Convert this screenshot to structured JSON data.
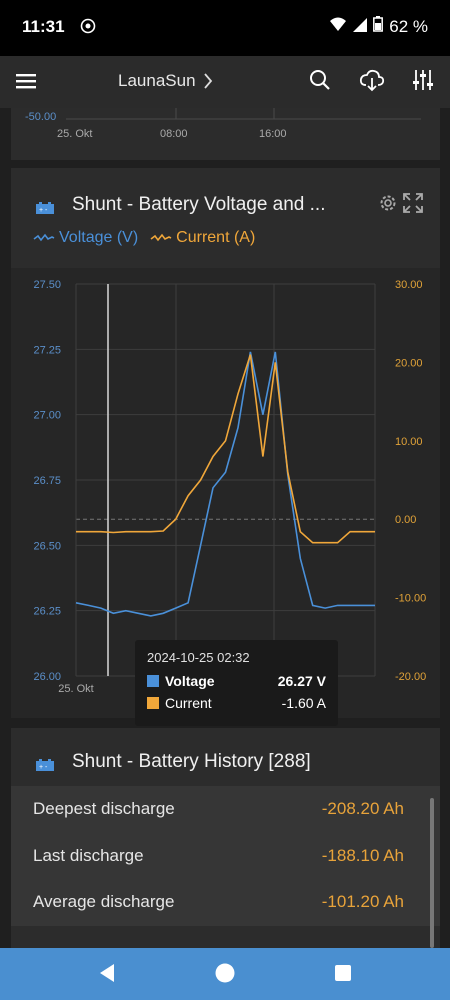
{
  "status_bar": {
    "time": "11:31",
    "battery_percent": "62 %"
  },
  "app_bar": {
    "title": "LaunaSun"
  },
  "top_card": {
    "y_tick": "-50.00",
    "x_ticks": [
      "25. Okt",
      "08:00",
      "16:00"
    ]
  },
  "chart_card": {
    "title": "Shunt - Battery Voltage and ...",
    "legend": {
      "voltage": "Voltage (V)",
      "current": "Current (A)"
    },
    "colors": {
      "voltage": "#4a90d9",
      "current": "#f0a73a"
    },
    "tooltip": {
      "timestamp": "2024-10-25 02:32",
      "voltage_label": "Voltage",
      "voltage_value": "26.27 V",
      "current_label": "Current",
      "current_value": "-1.60 A"
    }
  },
  "chart_data": {
    "type": "line",
    "y_left_ticks": [
      "27.50",
      "27.25",
      "27.00",
      "26.75",
      "26.50",
      "26.25",
      "26.00"
    ],
    "y_right_ticks": [
      "30.00",
      "20.00",
      "10.00",
      "0.00",
      "-10.00",
      "-20.00"
    ],
    "x_ticks": [
      "25. Okt",
      "08:00",
      "16:00"
    ],
    "ylim_left": [
      26.0,
      27.5
    ],
    "ylim_right": [
      -20,
      30
    ],
    "series": [
      {
        "name": "Voltage (V)",
        "axis": "left",
        "points": [
          [
            0,
            26.28
          ],
          [
            1,
            26.27
          ],
          [
            2,
            26.26
          ],
          [
            3,
            26.24
          ],
          [
            4,
            26.25
          ],
          [
            5,
            26.24
          ],
          [
            6,
            26.23
          ],
          [
            7,
            26.24
          ],
          [
            8,
            26.26
          ],
          [
            9,
            26.28
          ],
          [
            10,
            26.5
          ],
          [
            11,
            26.72
          ],
          [
            12,
            26.78
          ],
          [
            13,
            26.95
          ],
          [
            14,
            27.24
          ],
          [
            15,
            27.0
          ],
          [
            16,
            27.24
          ],
          [
            17,
            26.77
          ],
          [
            18,
            26.45
          ],
          [
            19,
            26.27
          ],
          [
            20,
            26.26
          ],
          [
            21,
            26.27
          ],
          [
            22,
            26.27
          ],
          [
            23,
            26.27
          ],
          [
            24,
            26.27
          ]
        ]
      },
      {
        "name": "Current (A)",
        "axis": "right",
        "points": [
          [
            0,
            -1.6
          ],
          [
            1,
            -1.6
          ],
          [
            2,
            -1.6
          ],
          [
            3,
            -1.7
          ],
          [
            4,
            -1.6
          ],
          [
            5,
            -1.6
          ],
          [
            6,
            -1.6
          ],
          [
            7,
            -1.5
          ],
          [
            8,
            0
          ],
          [
            9,
            3
          ],
          [
            10,
            5
          ],
          [
            11,
            8
          ],
          [
            12,
            10
          ],
          [
            13,
            16
          ],
          [
            14,
            21
          ],
          [
            15,
            8
          ],
          [
            16,
            20
          ],
          [
            17,
            6
          ],
          [
            18,
            -1.6
          ],
          [
            19,
            -3
          ],
          [
            20,
            -3
          ],
          [
            21,
            -3
          ],
          [
            22,
            -1.6
          ],
          [
            23,
            -1.6
          ],
          [
            24,
            -1.6
          ]
        ]
      }
    ]
  },
  "history_card": {
    "title": "Shunt - Battery History [288]",
    "rows": [
      {
        "label": "Deepest discharge",
        "value": "-208.20 Ah"
      },
      {
        "label": "Last discharge",
        "value": "-188.10 Ah"
      },
      {
        "label": "Average discharge",
        "value": "-101.20 Ah"
      }
    ]
  }
}
